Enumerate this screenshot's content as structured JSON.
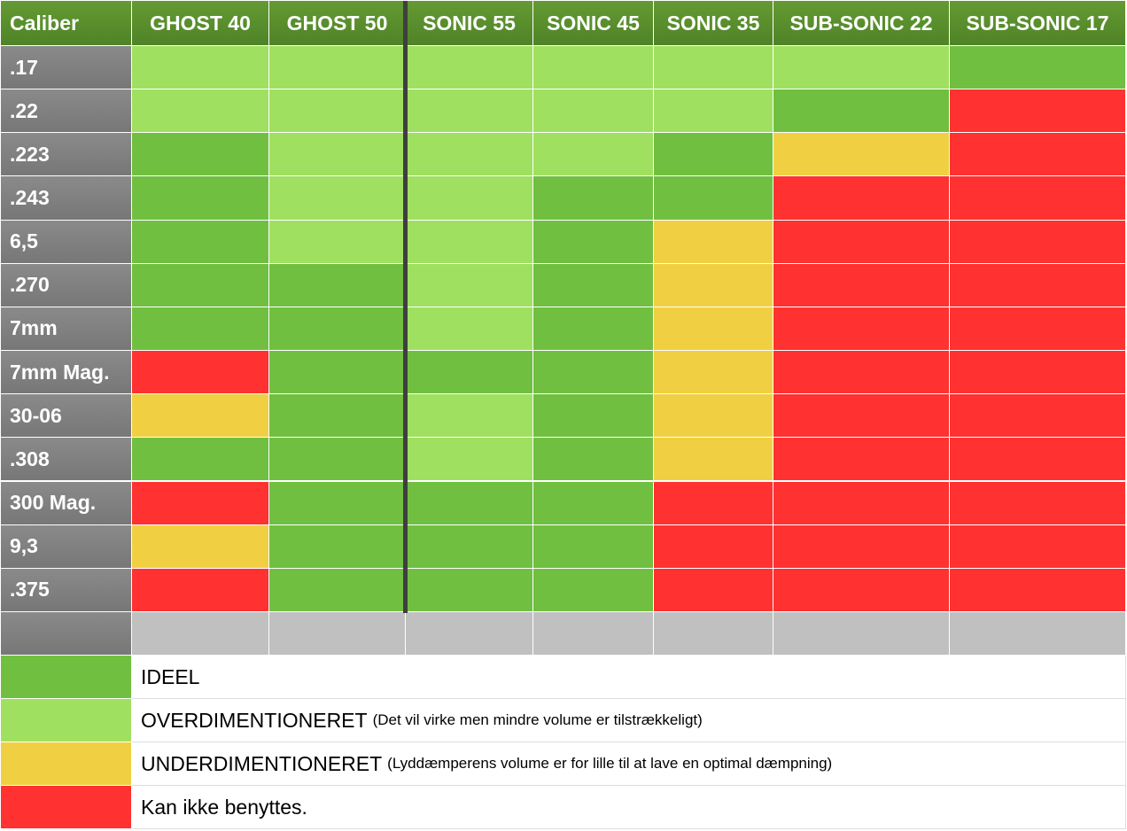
{
  "table": {
    "header": [
      "Caliber",
      "GHOST 40",
      "GHOST 50",
      "SONIC 55",
      "SONIC 45",
      "SONIC 35",
      "SUB-SONIC 22",
      "SUB-SONIC 17"
    ],
    "rows": [
      {
        "label": ".17",
        "cells": [
          "#a0e060",
          "#a0e060",
          "#a0e060",
          "#a0e060",
          "#a0e060",
          "#a0e060",
          "#70bf41"
        ]
      },
      {
        "label": ".22",
        "cells": [
          "#a0e060",
          "#a0e060",
          "#a0e060",
          "#a0e060",
          "#a0e060",
          "#70bf41",
          "#ff3131"
        ]
      },
      {
        "label": ".223",
        "cells": [
          "#70bf41",
          "#a0e060",
          "#a0e060",
          "#a0e060",
          "#70bf41",
          "#f0d042",
          "#ff3131"
        ]
      },
      {
        "label": ".243",
        "cells": [
          "#70bf41",
          "#a0e060",
          "#a0e060",
          "#70bf41",
          "#70bf41",
          "#ff3131",
          "#ff3131"
        ]
      },
      {
        "label": "6,5",
        "cells": [
          "#70bf41",
          "#a0e060",
          "#a0e060",
          "#70bf41",
          "#f0d042",
          "#ff3131",
          "#ff3131"
        ]
      },
      {
        "label": ".270",
        "cells": [
          "#70bf41",
          "#70bf41",
          "#a0e060",
          "#70bf41",
          "#f0d042",
          "#ff3131",
          "#ff3131"
        ]
      },
      {
        "label": "7mm",
        "cells": [
          "#70bf41",
          "#70bf41",
          "#a0e060",
          "#70bf41",
          "#f0d042",
          "#ff3131",
          "#ff3131"
        ]
      },
      {
        "label": "7mm Mag.",
        "cells": [
          "#ff3131",
          "#70bf41",
          "#70bf41",
          "#70bf41",
          "#f0d042",
          "#ff3131",
          "#ff3131"
        ]
      },
      {
        "label": "30-06",
        "cells": [
          "#f0d042",
          "#70bf41",
          "#a0e060",
          "#70bf41",
          "#f0d042",
          "#ff3131",
          "#ff3131"
        ]
      },
      {
        "label": ".308",
        "cells": [
          "#70bf41",
          "#70bf41",
          "#a0e060",
          "#70bf41",
          "#f0d042",
          "#ff3131",
          "#ff3131"
        ]
      },
      {
        "label": "300 Mag.",
        "cells": [
          "#ff3131",
          "#70bf41",
          "#70bf41",
          "#70bf41",
          "#ff3131",
          "#ff3131",
          "#ff3131"
        ]
      },
      {
        "label": "9,3",
        "cells": [
          "#f0d042",
          "#70bf41",
          "#70bf41",
          "#70bf41",
          "#ff3131",
          "#ff3131",
          "#ff3131"
        ]
      },
      {
        "label": ".375",
        "cells": [
          "#ff3131",
          "#70bf41",
          "#70bf41",
          "#70bf41",
          "#ff3131",
          "#ff3131",
          "#ff3131"
        ]
      },
      {
        "label": null,
        "cells": [
          "#c0c0c0",
          "#c0c0c0",
          "#c0c0c0",
          "#c0c0c0",
          "#c0c0c0",
          "#c0c0c0",
          "#c0c0c0"
        ]
      }
    ]
  },
  "legend": [
    {
      "color": "#70bf41",
      "label": "IDEEL"
    },
    {
      "color": "#a0e060",
      "label": "OVERDIMENTIONERET",
      "note": "(Det vil virke men mindre volume er tilstrækkeligt)"
    },
    {
      "color": "#f0d042",
      "label": "UNDERDIMENTIONERET",
      "note": "(Lyddæmperens volume er for lille til at lave en optimal dæmpning)"
    },
    {
      "color": "#ff3131",
      "label": "Kan ikke benyttes."
    }
  ]
}
